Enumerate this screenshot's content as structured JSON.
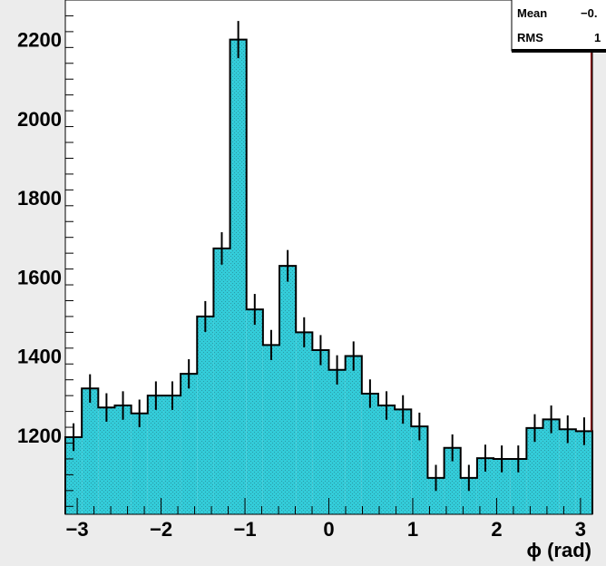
{
  "chart_data": {
    "type": "bar",
    "subtype": "histogram",
    "xlabel": "ϕ (rad)",
    "ylabel": "",
    "xlim": [
      -3.1416,
      3.1416
    ],
    "ylim": [
      1000,
      2300
    ],
    "x_ticks": [
      -3,
      -2,
      -1,
      0,
      1,
      2,
      3
    ],
    "x_tick_labels": [
      "−3",
      "−2",
      "−1",
      "0",
      "1",
      "2",
      "3"
    ],
    "y_ticks": [
      1200,
      1400,
      1600,
      1800,
      2000,
      2200
    ],
    "y_tick_labels": [
      "1200",
      "1400",
      "1600",
      "1800",
      "2000",
      "2200"
    ],
    "grid": false,
    "fill_color": "#33ccd9",
    "line_color": "#000000",
    "series": [
      {
        "values": [
          1195,
          1318,
          1270,
          1275,
          1255,
          1300,
          1300,
          1355,
          1500,
          1672,
          2200,
          1518,
          1428,
          1628,
          1460,
          1415,
          1365,
          1400,
          1305,
          1275,
          1265,
          1222,
          1092,
          1168,
          1092,
          1142,
          1140,
          1140,
          1218,
          1240,
          1215,
          1210
        ],
        "errors": [
          35,
          36,
          36,
          36,
          35,
          36,
          36,
          37,
          39,
          41,
          47,
          39,
          38,
          40,
          38,
          38,
          37,
          37,
          36,
          36,
          36,
          35,
          33,
          34,
          33,
          34,
          34,
          34,
          35,
          35,
          35,
          35
        ]
      }
    ],
    "stats_box": {
      "rows": [
        {
          "label": "Mean",
          "value": "−0."
        },
        {
          "label": "RMS",
          "value": "1"
        }
      ]
    }
  }
}
